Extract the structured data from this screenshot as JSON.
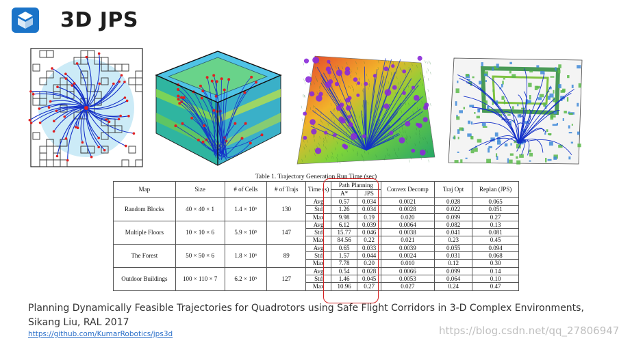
{
  "slide": {
    "title": "3D JPS",
    "citation_line1": "Planning Dynamically Feasible Trajectories for Quadrotors using Safe Flight Corridors in 3-D Complex Environments,",
    "citation_line2": "Sikang Liu, RAL 2017",
    "link": "https://github.com/KumarRobotics/jps3d",
    "watermark": "https://blog.csdn.net/qq_27806947"
  },
  "table": {
    "caption": "Table 1. Trajectory Generation Run Time (sec)",
    "headers": {
      "map": "Map",
      "size": "Size",
      "cells": "# of Cells",
      "trajs": "# of Trajs",
      "time": "Time (s)",
      "path_planning": "Path Planning",
      "astar": "A*",
      "jps": "JPS",
      "convex": "Convex Decomp",
      "traj_opt": "Traj Opt",
      "replan": "Replan (JPS)"
    },
    "rows": [
      {
        "map": "Random Blocks",
        "size": "40 × 40 × 1",
        "cells": "1.4 × 10⁶",
        "trajs": "130",
        "stats": [
          {
            "label": "Avg",
            "astar": "0.57",
            "jps": "0.034",
            "convex": "0.0021",
            "traj": "0.028",
            "replan": "0.065"
          },
          {
            "label": "Std",
            "astar": "1.26",
            "jps": "0.034",
            "convex": "0.0028",
            "traj": "0.022",
            "replan": "0.051"
          },
          {
            "label": "Max",
            "astar": "9.98",
            "jps": "0.19",
            "convex": "0.020",
            "traj": "0.099",
            "replan": "0.27"
          }
        ]
      },
      {
        "map": "Multiple Floors",
        "size": "10 × 10 × 6",
        "cells": "5.9 × 10⁵",
        "trajs": "147",
        "stats": [
          {
            "label": "Avg",
            "astar": "6.12",
            "jps": "0.039",
            "convex": "0.0064",
            "traj": "0.082",
            "replan": "0.13"
          },
          {
            "label": "Std",
            "astar": "15.77",
            "jps": "0.046",
            "convex": "0.0038",
            "traj": "0.041",
            "replan": "0.081"
          },
          {
            "label": "Max",
            "astar": "84.56",
            "jps": "0.22",
            "convex": "0.021",
            "traj": "0.23",
            "replan": "0.45"
          }
        ]
      },
      {
        "map": "The Forest",
        "size": "50 × 50 × 6",
        "cells": "1.8 × 10⁶",
        "trajs": "89",
        "stats": [
          {
            "label": "Avg",
            "astar": "0.65",
            "jps": "0.033",
            "convex": "0.0039",
            "traj": "0.055",
            "replan": "0.094"
          },
          {
            "label": "Std",
            "astar": "1.57",
            "jps": "0.044",
            "convex": "0.0024",
            "traj": "0.031",
            "replan": "0.068"
          },
          {
            "label": "Max",
            "astar": "7.78",
            "jps": "0.20",
            "convex": "0.010",
            "traj": "0.12",
            "replan": "0.30"
          }
        ]
      },
      {
        "map": "Outdoor Buildings",
        "size": "100 × 110 × 7",
        "cells": "6.2 × 10⁵",
        "trajs": "127",
        "stats": [
          {
            "label": "Avg",
            "astar": "0.54",
            "jps": "0.028",
            "convex": "0.0066",
            "traj": "0.099",
            "replan": "0.14"
          },
          {
            "label": "Std",
            "astar": "1.46",
            "jps": "0.045",
            "convex": "0.0053",
            "traj": "0.064",
            "replan": "0.10"
          },
          {
            "label": "Max",
            "astar": "10.96",
            "jps": "0.27",
            "convex": "0.027",
            "traj": "0.24",
            "replan": "0.47"
          }
        ]
      }
    ]
  },
  "colors": {
    "logo": "#1a73c8",
    "highlight": "#d42020",
    "path": "#1430c8",
    "point": "#e02020"
  }
}
